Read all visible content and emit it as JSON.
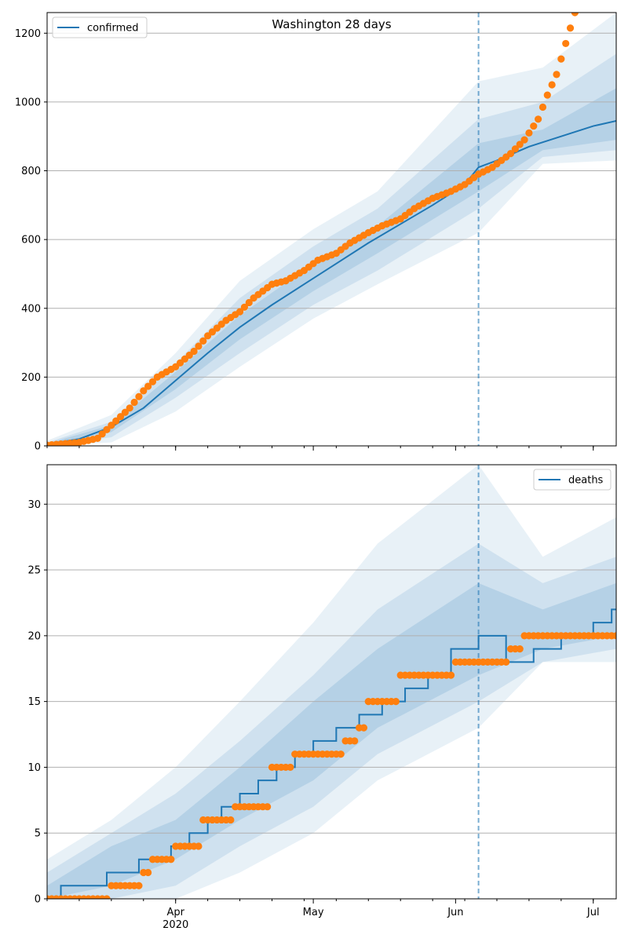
{
  "chart_data": [
    {
      "type": "line",
      "title": "Washington 28 days",
      "xlabel": "",
      "ylabel": "",
      "ylim": [
        0,
        1260
      ],
      "yticks": [
        0,
        200,
        400,
        600,
        800,
        1000,
        1200
      ],
      "x_range": [
        "2020-03-04",
        "2020-07-06"
      ],
      "x_ticks": [
        {
          "date": "2020-04-01",
          "label": "Apr",
          "sublabel": "2020"
        },
        {
          "date": "2020-05-01",
          "label": "May",
          "sublabel": ""
        },
        {
          "date": "2020-06-01",
          "label": "Jun",
          "sublabel": ""
        },
        {
          "date": "2020-07-01",
          "label": "Jul",
          "sublabel": ""
        }
      ],
      "forecast_start": "2020-06-06",
      "grid": "horizontal",
      "legend_position": "top-left",
      "colors": {
        "model": "#1f77b4",
        "observed": "#ff7f0e",
        "band": "#1f77b4",
        "marker_line": "#1f77b4"
      },
      "series": [
        {
          "name": "confirmed",
          "kind": "line",
          "x": [
            "2020-03-04",
            "2020-03-11",
            "2020-03-18",
            "2020-03-25",
            "2020-04-01",
            "2020-04-08",
            "2020-04-15",
            "2020-04-22",
            "2020-04-29",
            "2020-05-06",
            "2020-05-13",
            "2020-05-20",
            "2020-05-27",
            "2020-06-03",
            "2020-06-06",
            "2020-06-10",
            "2020-06-17",
            "2020-06-24",
            "2020-07-01",
            "2020-07-06"
          ],
          "values": [
            5,
            20,
            55,
            110,
            190,
            270,
            345,
            410,
            470,
            530,
            590,
            645,
            700,
            760,
            810,
            830,
            870,
            900,
            930,
            945
          ]
        },
        {
          "name": "",
          "kind": "points",
          "x": [
            "2020-03-04",
            "2020-03-11",
            "2020-03-15",
            "2020-03-18",
            "2020-03-22",
            "2020-03-25",
            "2020-03-28",
            "2020-04-01",
            "2020-04-05",
            "2020-04-08",
            "2020-04-12",
            "2020-04-15",
            "2020-04-18",
            "2020-04-22",
            "2020-04-25",
            "2020-04-29",
            "2020-05-02",
            "2020-05-06",
            "2020-05-09",
            "2020-05-13",
            "2020-05-16",
            "2020-05-20",
            "2020-05-23",
            "2020-05-27",
            "2020-05-31",
            "2020-06-03",
            "2020-06-06",
            "2020-06-09",
            "2020-06-13",
            "2020-06-16",
            "2020-06-19",
            "2020-06-21",
            "2020-06-23",
            "2020-06-25",
            "2020-06-27"
          ],
          "values": [
            2,
            10,
            22,
            60,
            110,
            160,
            200,
            230,
            275,
            320,
            365,
            390,
            430,
            470,
            480,
            510,
            540,
            560,
            590,
            620,
            640,
            660,
            690,
            720,
            740,
            760,
            790,
            810,
            850,
            890,
            950,
            1020,
            1080,
            1170,
            1260
          ]
        },
        {
          "name": "",
          "kind": "band",
          "level": "outer",
          "x": [
            "2020-03-04",
            "2020-03-18",
            "2020-04-01",
            "2020-04-15",
            "2020-05-01",
            "2020-05-15",
            "2020-06-06",
            "2020-06-20",
            "2020-07-06"
          ],
          "upper": [
            15,
            90,
            270,
            480,
            630,
            740,
            1060,
            1100,
            1260
          ],
          "lower": [
            0,
            10,
            100,
            230,
            370,
            470,
            620,
            820,
            830
          ]
        },
        {
          "name": "",
          "kind": "band",
          "level": "middle",
          "x": [
            "2020-03-04",
            "2020-03-18",
            "2020-04-01",
            "2020-04-15",
            "2020-05-01",
            "2020-05-15",
            "2020-06-06",
            "2020-06-20",
            "2020-07-06"
          ],
          "upper": [
            10,
            70,
            240,
            430,
            580,
            690,
            950,
            1000,
            1140
          ],
          "lower": [
            0,
            25,
            140,
            270,
            410,
            510,
            690,
            840,
            860
          ]
        },
        {
          "name": "",
          "kind": "band",
          "level": "inner",
          "x": [
            "2020-03-04",
            "2020-03-18",
            "2020-04-01",
            "2020-04-15",
            "2020-05-01",
            "2020-05-15",
            "2020-06-06",
            "2020-06-20",
            "2020-07-06"
          ],
          "upper": [
            7,
            60,
            215,
            380,
            530,
            640,
            880,
            920,
            1040
          ],
          "lower": [
            2,
            40,
            165,
            310,
            450,
            560,
            740,
            860,
            890
          ]
        }
      ]
    },
    {
      "type": "line",
      "title": "",
      "xlabel": "",
      "ylabel": "",
      "ylim": [
        0,
        33
      ],
      "yticks": [
        0,
        5,
        10,
        15,
        20,
        25,
        30
      ],
      "x_range": [
        "2020-03-04",
        "2020-07-06"
      ],
      "x_ticks": [
        {
          "date": "2020-04-01",
          "label": "Apr",
          "sublabel": "2020"
        },
        {
          "date": "2020-05-01",
          "label": "May",
          "sublabel": ""
        },
        {
          "date": "2020-06-01",
          "label": "Jun",
          "sublabel": ""
        },
        {
          "date": "2020-07-01",
          "label": "Jul",
          "sublabel": ""
        }
      ],
      "forecast_start": "2020-06-06",
      "grid": "horizontal",
      "legend_position": "top-right",
      "colors": {
        "model": "#1f77b4",
        "observed": "#ff7f0e",
        "band": "#1f77b4",
        "marker_line": "#1f77b4"
      },
      "series": [
        {
          "name": "deaths",
          "kind": "line",
          "x": [
            "2020-03-04",
            "2020-03-07",
            "2020-03-17",
            "2020-03-24",
            "2020-03-31",
            "2020-04-04",
            "2020-04-08",
            "2020-04-11",
            "2020-04-15",
            "2020-04-19",
            "2020-04-23",
            "2020-04-27",
            "2020-05-01",
            "2020-05-06",
            "2020-05-11",
            "2020-05-16",
            "2020-05-21",
            "2020-05-26",
            "2020-05-31",
            "2020-06-06",
            "2020-06-12",
            "2020-06-18",
            "2020-06-24",
            "2020-07-01",
            "2020-07-05"
          ],
          "values": [
            0,
            1,
            2,
            3,
            4,
            5,
            6,
            7,
            8,
            9,
            10,
            11,
            12,
            13,
            14,
            15,
            16,
            17,
            19,
            20,
            18,
            19,
            20,
            21,
            22
          ]
        },
        {
          "name": "",
          "kind": "points",
          "x": [
            "2020-03-04",
            "2020-03-18",
            "2020-03-25",
            "2020-03-27",
            "2020-04-01",
            "2020-04-07",
            "2020-04-14",
            "2020-04-22",
            "2020-04-27",
            "2020-05-08",
            "2020-05-11",
            "2020-05-13",
            "2020-05-16",
            "2020-05-20",
            "2020-06-01",
            "2020-06-13",
            "2020-06-16",
            "2020-07-06"
          ],
          "values": [
            0,
            1,
            2,
            3,
            4,
            6,
            7,
            10,
            11,
            12,
            13,
            15,
            15,
            17,
            18,
            19,
            20,
            20
          ]
        },
        {
          "name": "",
          "kind": "band",
          "level": "outer",
          "x": [
            "2020-03-04",
            "2020-03-18",
            "2020-04-01",
            "2020-04-15",
            "2020-05-01",
            "2020-05-15",
            "2020-06-06",
            "2020-06-20",
            "2020-07-06"
          ],
          "upper": [
            3,
            6,
            10,
            15,
            21,
            27,
            33,
            26,
            29
          ],
          "lower": [
            0,
            0,
            0,
            2,
            5,
            9,
            13,
            18,
            18
          ]
        },
        {
          "name": "",
          "kind": "band",
          "level": "middle",
          "x": [
            "2020-03-04",
            "2020-03-18",
            "2020-04-01",
            "2020-04-15",
            "2020-05-01",
            "2020-05-15",
            "2020-06-06",
            "2020-06-20",
            "2020-07-06"
          ],
          "upper": [
            2,
            5,
            8,
            12,
            17,
            22,
            27,
            24,
            26
          ],
          "lower": [
            0,
            0,
            1,
            4,
            7,
            11,
            15,
            18,
            19
          ]
        },
        {
          "name": "",
          "kind": "band",
          "level": "inner",
          "x": [
            "2020-03-04",
            "2020-03-18",
            "2020-04-01",
            "2020-04-15",
            "2020-05-01",
            "2020-05-15",
            "2020-06-06",
            "2020-06-20",
            "2020-07-06"
          ],
          "upper": [
            1,
            4,
            6,
            10,
            15,
            19,
            24,
            22,
            24
          ],
          "lower": [
            0,
            1,
            3,
            6,
            9,
            13,
            17,
            19,
            20
          ]
        }
      ]
    }
  ]
}
